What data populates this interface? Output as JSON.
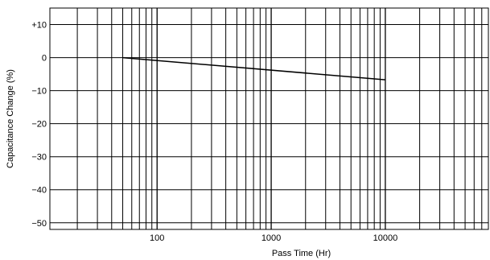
{
  "chart_data": {
    "type": "line",
    "title": "",
    "xlabel": "Pass Time (Hr)",
    "ylabel": "Capacitance Change (%)",
    "x_scale": "log",
    "xlim": [
      11.5,
      80000
    ],
    "ylim": [
      -52,
      15
    ],
    "x_tick_labels": [
      {
        "value": 100,
        "label": "100"
      },
      {
        "value": 1000,
        "label": "1000"
      },
      {
        "value": 10000,
        "label": "10000"
      }
    ],
    "y_tick_labels": [
      {
        "value": 10,
        "label": "+10"
      },
      {
        "value": 0,
        "label": "0"
      },
      {
        "value": -10,
        "label": "−10"
      },
      {
        "value": -20,
        "label": "−20"
      },
      {
        "value": -30,
        "label": "−30"
      },
      {
        "value": -40,
        "label": "−40"
      },
      {
        "value": -50,
        "label": "−50"
      }
    ],
    "grid": true,
    "legend": "none",
    "series": [
      {
        "x": [
          50,
          10000
        ],
        "y": [
          0,
          -6.7
        ],
        "color": "#000000"
      }
    ]
  }
}
